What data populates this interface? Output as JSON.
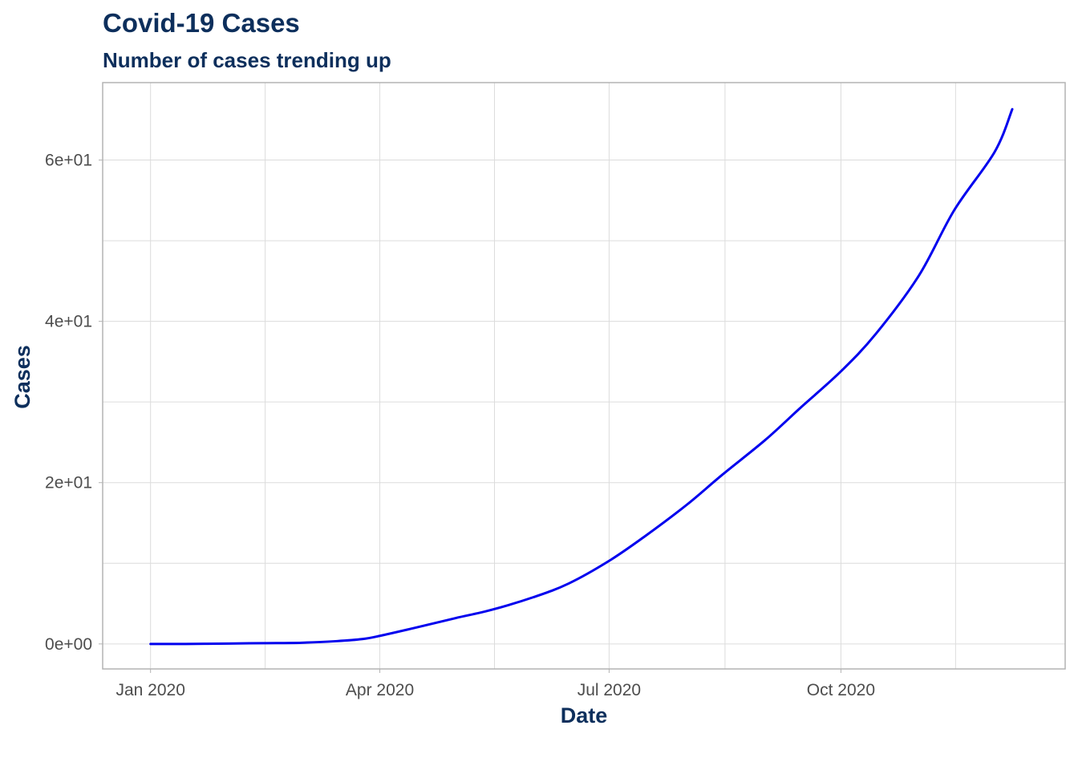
{
  "chart_data": {
    "type": "line",
    "title": "Covid-19 Cases",
    "subtitle": "Number of cases trending up",
    "xlabel": "Date",
    "ylabel": "Cases",
    "x_ticks": [
      {
        "date": "2020-01-01",
        "label": "Jan 2020"
      },
      {
        "date": "2020-04-01",
        "label": "Apr 2020"
      },
      {
        "date": "2020-07-01",
        "label": "Jul 2020"
      },
      {
        "date": "2020-10-01",
        "label": "Oct 2020"
      }
    ],
    "y_ticks": [
      {
        "value": 0,
        "label": "0e+00"
      },
      {
        "value": 20,
        "label": "2e+01"
      },
      {
        "value": 40,
        "label": "4e+01"
      },
      {
        "value": 60,
        "label": "6e+01"
      }
    ],
    "xlim": [
      "2019-12-13",
      "2020-12-29"
    ],
    "ylim": [
      -3.1,
      69.6
    ],
    "grid": true,
    "series": [
      {
        "color": "#0000ee",
        "points": [
          {
            "x": "2020-01-01",
            "y": 0
          },
          {
            "x": "2020-01-15",
            "y": 0
          },
          {
            "x": "2020-02-01",
            "y": 0.05
          },
          {
            "x": "2020-02-15",
            "y": 0.1
          },
          {
            "x": "2020-03-01",
            "y": 0.15
          },
          {
            "x": "2020-03-15",
            "y": 0.35
          },
          {
            "x": "2020-03-25",
            "y": 0.6
          },
          {
            "x": "2020-04-01",
            "y": 1.0
          },
          {
            "x": "2020-04-15",
            "y": 2.0
          },
          {
            "x": "2020-05-01",
            "y": 3.2
          },
          {
            "x": "2020-05-15",
            "y": 4.2
          },
          {
            "x": "2020-06-01",
            "y": 5.8
          },
          {
            "x": "2020-06-15",
            "y": 7.5
          },
          {
            "x": "2020-07-01",
            "y": 10.3
          },
          {
            "x": "2020-07-15",
            "y": 13.3
          },
          {
            "x": "2020-08-01",
            "y": 17.3
          },
          {
            "x": "2020-08-15",
            "y": 21.0
          },
          {
            "x": "2020-09-01",
            "y": 25.3
          },
          {
            "x": "2020-09-15",
            "y": 29.3
          },
          {
            "x": "2020-10-01",
            "y": 33.8
          },
          {
            "x": "2020-10-15",
            "y": 38.5
          },
          {
            "x": "2020-11-01",
            "y": 45.7
          },
          {
            "x": "2020-11-15",
            "y": 53.8
          },
          {
            "x": "2020-12-01",
            "y": 61.0
          },
          {
            "x": "2020-12-08",
            "y": 66.3
          }
        ]
      }
    ],
    "colors": {
      "title": "#0d2f5c",
      "grid": "#dcdcdc",
      "panel_border": "#b3b3b3",
      "tick_label": "#4d4d4d"
    }
  }
}
